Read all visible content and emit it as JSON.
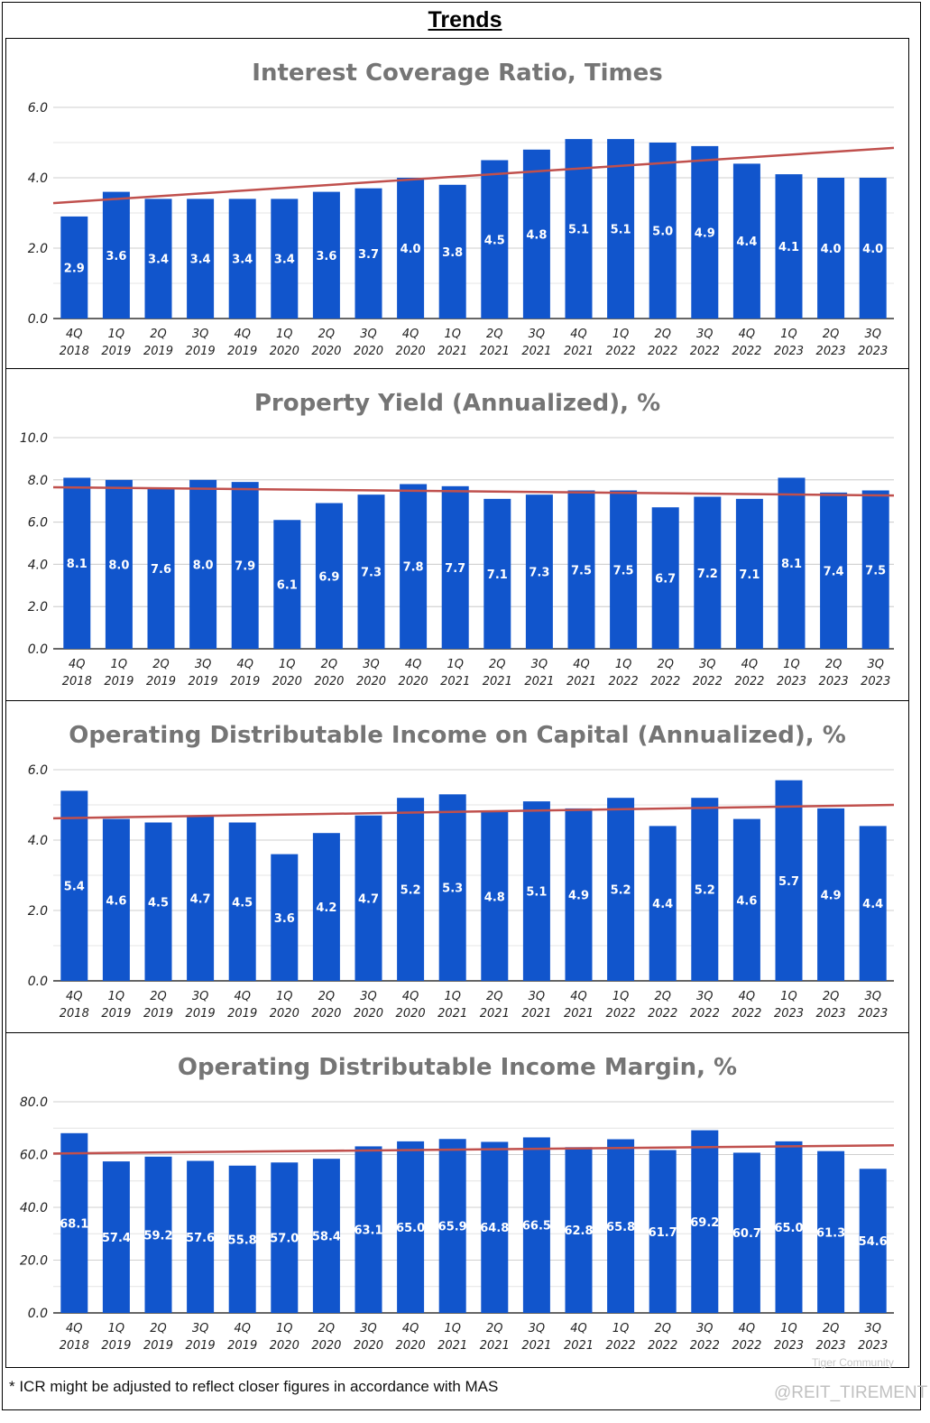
{
  "title": "Trends",
  "footnote": "* ICR might be adjusted to reflect closer figures in accordance with MAS",
  "watermark": {
    "brand": "Tiger Community",
    "handle": "@REIT_TIREMENT"
  },
  "colors": {
    "bar": "#1155cc",
    "trendline": "#c0504d",
    "title": "#757575",
    "label": "#ffffff"
  },
  "chart_data": [
    {
      "type": "bar",
      "title": "Interest Coverage Ratio, Times",
      "categories": [
        "4Q 2018",
        "1Q 2019",
        "2Q 2019",
        "3Q 2019",
        "4Q 2019",
        "1Q 2020",
        "2Q 2020",
        "3Q 2020",
        "4Q 2020",
        "1Q 2021",
        "2Q 2021",
        "3Q 2021",
        "4Q 2021",
        "1Q 2022",
        "2Q 2022",
        "3Q 2022",
        "4Q 2022",
        "1Q 2023",
        "2Q 2023",
        "3Q 2023"
      ],
      "values": [
        2.9,
        3.6,
        3.4,
        3.4,
        3.4,
        3.4,
        3.6,
        3.7,
        4.0,
        3.8,
        4.5,
        4.8,
        5.1,
        5.1,
        5.0,
        4.9,
        4.4,
        4.1,
        4.0,
        4.0
      ],
      "ylim": [
        0,
        6
      ],
      "yticks": [
        "0.0",
        "2.0",
        "4.0",
        "6.0"
      ],
      "ytick_values": [
        0,
        2,
        4,
        6
      ],
      "minor_step": 1,
      "trendline": {
        "type": "linear",
        "start": 3.28,
        "end": 4.85
      },
      "grid": true
    },
    {
      "type": "bar",
      "title": "Property Yield (Annualized), %",
      "categories": [
        "4Q 2018",
        "1Q 2019",
        "2Q 2019",
        "3Q 2019",
        "4Q 2019",
        "1Q 2020",
        "2Q 2020",
        "3Q 2020",
        "4Q 2020",
        "1Q 2021",
        "2Q 2021",
        "3Q 2021",
        "4Q 2021",
        "1Q 2022",
        "2Q 2022",
        "3Q 2022",
        "4Q 2022",
        "1Q 2023",
        "2Q 2023",
        "3Q 2023"
      ],
      "values": [
        8.1,
        8.0,
        7.6,
        8.0,
        7.9,
        6.1,
        6.9,
        7.3,
        7.8,
        7.7,
        7.1,
        7.3,
        7.5,
        7.5,
        6.7,
        7.2,
        7.1,
        8.1,
        7.4,
        7.5
      ],
      "ylim": [
        0,
        10
      ],
      "yticks": [
        "0.0",
        "2.0",
        "4.0",
        "6.0",
        "8.0",
        "10.0"
      ],
      "ytick_values": [
        0,
        2,
        4,
        6,
        8,
        10
      ],
      "minor_step": 2,
      "trendline": {
        "type": "linear",
        "start": 7.65,
        "end": 7.26
      },
      "grid": true
    },
    {
      "type": "bar",
      "title": "Operating Distributable Income on Capital (Annualized), %",
      "categories": [
        "4Q 2018",
        "1Q 2019",
        "2Q 2019",
        "3Q 2019",
        "4Q 2019",
        "1Q 2020",
        "2Q 2020",
        "3Q 2020",
        "4Q 2020",
        "1Q 2021",
        "2Q 2021",
        "3Q 2021",
        "4Q 2021",
        "1Q 2022",
        "2Q 2022",
        "3Q 2022",
        "4Q 2022",
        "1Q 2023",
        "2Q 2023",
        "3Q 2023"
      ],
      "values": [
        5.4,
        4.6,
        4.5,
        4.7,
        4.5,
        3.6,
        4.2,
        4.7,
        5.2,
        5.3,
        4.8,
        5.1,
        4.9,
        5.2,
        4.4,
        5.2,
        4.6,
        5.7,
        4.9,
        4.4
      ],
      "ylim": [
        0,
        6
      ],
      "yticks": [
        "0.0",
        "2.0",
        "4.0",
        "6.0"
      ],
      "ytick_values": [
        0,
        2,
        4,
        6
      ],
      "minor_step": 1,
      "trendline": {
        "type": "linear",
        "start": 4.62,
        "end": 5.0
      },
      "grid": true
    },
    {
      "type": "bar",
      "title": "Operating Distributable Income Margin, %",
      "categories": [
        "4Q 2018",
        "1Q 2019",
        "2Q 2019",
        "3Q 2019",
        "4Q 2019",
        "1Q 2020",
        "2Q 2020",
        "3Q 2020",
        "4Q 2020",
        "1Q 2021",
        "2Q 2021",
        "3Q 2021",
        "4Q 2021",
        "1Q 2022",
        "2Q 2022",
        "3Q 2022",
        "4Q 2022",
        "1Q 2023",
        "2Q 2023",
        "3Q 2023"
      ],
      "values": [
        68.1,
        57.4,
        59.2,
        57.6,
        55.8,
        57.0,
        58.4,
        63.1,
        65.0,
        65.9,
        64.8,
        66.5,
        62.8,
        65.8,
        61.7,
        69.2,
        60.7,
        65.0,
        61.3,
        54.6
      ],
      "ylim": [
        0,
        80
      ],
      "yticks": [
        "0.0",
        "20.0",
        "40.0",
        "60.0",
        "80.0"
      ],
      "ytick_values": [
        0,
        20,
        40,
        60,
        80
      ],
      "minor_step": 10,
      "trendline": {
        "type": "linear",
        "start": 60.4,
        "end": 63.5
      },
      "grid": true
    }
  ]
}
